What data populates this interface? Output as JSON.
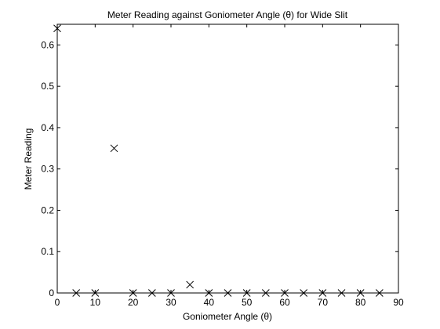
{
  "chart_data": {
    "type": "scatter",
    "title": "Meter Reading  against Goniometer Angle (θ) for Wide Slit",
    "xlabel": "Goniometer Angle (θ)",
    "ylabel": "Meter Reading",
    "xlim": [
      0,
      90
    ],
    "ylim": [
      0,
      0.65
    ],
    "grid": false,
    "marker": "x",
    "marker_color": "#000000",
    "x_ticks": [
      0,
      10,
      20,
      30,
      40,
      50,
      60,
      70,
      80,
      90
    ],
    "x_tick_labels": [
      "0",
      "10",
      "20",
      "30",
      "40",
      "50",
      "60",
      "70",
      "80",
      "90"
    ],
    "y_ticks": [
      0,
      0.1,
      0.2,
      0.3,
      0.4,
      0.5,
      0.6
    ],
    "y_tick_labels": [
      "0",
      "0.1",
      "0.2",
      "0.3",
      "0.4",
      "0.5",
      "0.6"
    ],
    "x": [
      0,
      5,
      10,
      15,
      20,
      25,
      30,
      35,
      40,
      45,
      50,
      55,
      60,
      65,
      70,
      75,
      80,
      85
    ],
    "y": [
      0.64,
      0,
      0,
      0.35,
      0,
      0,
      0,
      0.02,
      0,
      0,
      0,
      0,
      0,
      0,
      0,
      0,
      0,
      0
    ]
  }
}
